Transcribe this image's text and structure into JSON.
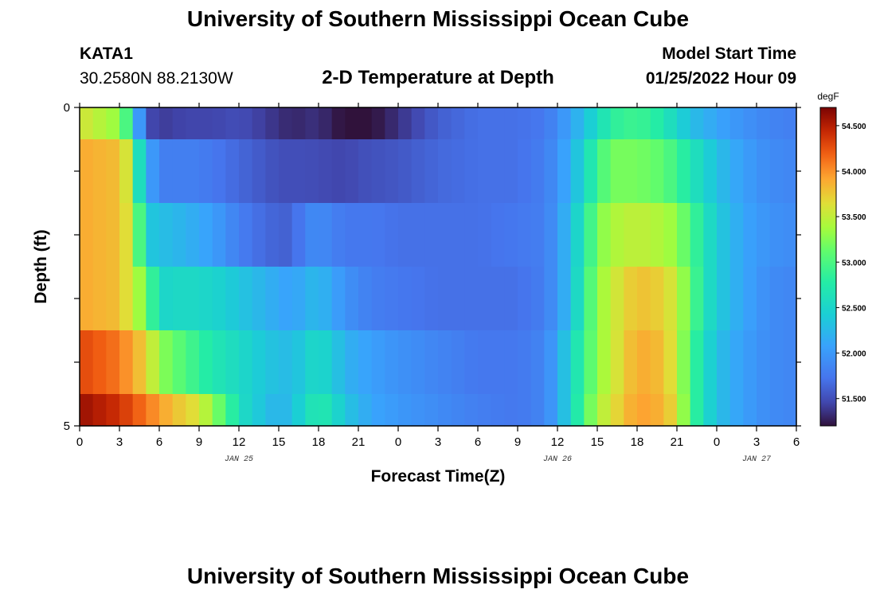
{
  "header": {
    "title": "University of Southern Mississippi Ocean Cube",
    "station_id": "KATA1",
    "coords": "30.2580N  88.2130W",
    "subtitle": "2-D Temperature at Depth",
    "model_label": "Model Start Time",
    "model_time": "01/25/2022 Hour 09"
  },
  "footer": {
    "title": "University of Southern Mississippi Ocean Cube"
  },
  "colors": {
    "colormap": "turbo",
    "axis": "#000000"
  },
  "chart_data": {
    "type": "heatmap",
    "title": "2-D Temperature at Depth",
    "xlabel": "Forecast Time(Z)",
    "ylabel": "Depth (ft)",
    "x_tick_labels": [
      "0",
      "3",
      "6",
      "9",
      "12",
      "15",
      "18",
      "21",
      "0",
      "3",
      "6",
      "9",
      "12",
      "15",
      "18",
      "21",
      "0",
      "3",
      "6"
    ],
    "date_labels": [
      {
        "text": "JAN 25",
        "at_tick": 4
      },
      {
        "text": "JAN 26",
        "at_tick": 12
      },
      {
        "text": "JAN 27",
        "at_tick": 17
      }
    ],
    "y_tick_labels": [
      "0",
      "5"
    ],
    "ylim": [
      0,
      5
    ],
    "x_hours_total": 54,
    "colorbar": {
      "unit": "degF",
      "range": [
        51.2,
        54.7
      ],
      "tick_labels": [
        "54.500",
        "54.000",
        "53.500",
        "53.000",
        "52.500",
        "52.000",
        "51.500"
      ],
      "tick_values": [
        54.5,
        54.0,
        53.5,
        53.0,
        52.5,
        52.0,
        51.5
      ]
    },
    "time_step_hours": 1,
    "depth_layers": [
      {
        "depth_range_ft": [
          0.0,
          0.5
        ],
        "keyframes": [
          [
            0,
            53.6
          ],
          [
            3,
            53.3
          ],
          [
            4,
            52.7
          ],
          [
            4.5,
            52.0
          ],
          [
            5,
            51.5
          ],
          [
            6,
            51.4
          ],
          [
            8,
            51.45
          ],
          [
            10,
            51.45
          ],
          [
            12,
            51.5
          ],
          [
            14,
            51.4
          ],
          [
            16,
            51.3
          ],
          [
            18,
            51.35
          ],
          [
            19,
            51.25
          ],
          [
            20,
            51.2
          ],
          [
            21,
            51.0
          ],
          [
            22,
            51.2
          ],
          [
            24,
            51.35
          ],
          [
            27,
            51.6
          ],
          [
            30,
            51.7
          ],
          [
            33,
            51.7
          ],
          [
            35,
            51.75
          ],
          [
            36,
            51.9
          ],
          [
            37,
            52.1
          ],
          [
            38,
            52.3
          ],
          [
            39,
            52.55
          ],
          [
            40,
            52.8
          ],
          [
            41,
            52.9
          ],
          [
            42,
            52.9
          ],
          [
            43,
            52.85
          ],
          [
            44,
            52.7
          ],
          [
            45,
            52.5
          ],
          [
            46,
            52.3
          ],
          [
            47,
            52.2
          ],
          [
            48,
            52.1
          ],
          [
            50,
            51.95
          ],
          [
            52,
            51.85
          ],
          [
            54,
            51.8
          ]
        ]
      },
      {
        "depth_range_ft": [
          0.5,
          1.5
        ],
        "keyframes": [
          [
            0,
            53.9
          ],
          [
            3,
            53.8
          ],
          [
            4,
            53.4
          ],
          [
            4.5,
            52.6
          ],
          [
            5,
            52.2
          ],
          [
            6,
            51.8
          ],
          [
            9,
            51.8
          ],
          [
            11,
            51.7
          ],
          [
            13,
            51.6
          ],
          [
            15,
            51.5
          ],
          [
            17,
            51.5
          ],
          [
            20,
            51.45
          ],
          [
            21,
            51.5
          ],
          [
            24,
            51.55
          ],
          [
            27,
            51.65
          ],
          [
            30,
            51.7
          ],
          [
            33,
            51.7
          ],
          [
            35,
            51.8
          ],
          [
            36,
            51.95
          ],
          [
            37,
            52.2
          ],
          [
            38,
            52.5
          ],
          [
            39,
            52.9
          ],
          [
            40,
            53.2
          ],
          [
            42,
            53.2
          ],
          [
            44,
            53.1
          ],
          [
            45,
            52.9
          ],
          [
            46,
            52.7
          ],
          [
            47,
            52.5
          ],
          [
            48,
            52.3
          ],
          [
            50,
            52.05
          ],
          [
            52,
            51.9
          ],
          [
            54,
            51.85
          ]
        ]
      },
      {
        "depth_range_ft": [
          1.5,
          2.5
        ],
        "keyframes": [
          [
            0,
            53.9
          ],
          [
            3,
            53.8
          ],
          [
            4,
            53.5
          ],
          [
            4.5,
            53.0
          ],
          [
            5,
            52.4
          ],
          [
            6,
            52.3
          ],
          [
            8,
            52.2
          ],
          [
            10,
            52.05
          ],
          [
            12,
            51.8
          ],
          [
            14,
            51.65
          ],
          [
            16,
            51.6
          ],
          [
            17,
            51.85
          ],
          [
            18,
            51.9
          ],
          [
            20,
            51.75
          ],
          [
            22,
            51.75
          ],
          [
            24,
            51.7
          ],
          [
            27,
            51.7
          ],
          [
            30,
            51.7
          ],
          [
            33,
            51.75
          ],
          [
            35,
            51.8
          ],
          [
            36,
            52.0
          ],
          [
            37,
            52.3
          ],
          [
            38,
            52.7
          ],
          [
            39,
            53.2
          ],
          [
            40,
            53.4
          ],
          [
            42,
            53.5
          ],
          [
            44,
            53.4
          ],
          [
            45,
            53.3
          ],
          [
            46,
            53.0
          ],
          [
            47,
            52.7
          ],
          [
            48,
            52.4
          ],
          [
            50,
            52.1
          ],
          [
            52,
            51.95
          ],
          [
            54,
            51.9
          ]
        ]
      },
      {
        "depth_range_ft": [
          2.5,
          3.5
        ],
        "keyframes": [
          [
            0,
            53.9
          ],
          [
            3,
            53.8
          ],
          [
            4,
            53.5
          ],
          [
            5,
            53.2
          ],
          [
            6,
            52.5
          ],
          [
            8,
            52.55
          ],
          [
            10,
            52.5
          ],
          [
            12,
            52.35
          ],
          [
            14,
            52.2
          ],
          [
            16,
            52.05
          ],
          [
            17,
            52.2
          ],
          [
            18,
            52.25
          ],
          [
            19,
            52.1
          ],
          [
            20,
            51.95
          ],
          [
            22,
            51.8
          ],
          [
            24,
            51.75
          ],
          [
            27,
            51.7
          ],
          [
            30,
            51.7
          ],
          [
            33,
            51.7
          ],
          [
            35,
            51.8
          ],
          [
            36,
            52.0
          ],
          [
            37,
            52.3
          ],
          [
            38,
            52.8
          ],
          [
            39,
            53.3
          ],
          [
            40,
            53.5
          ],
          [
            42,
            53.8
          ],
          [
            44,
            53.7
          ],
          [
            45,
            53.5
          ],
          [
            46,
            53.1
          ],
          [
            47,
            52.7
          ],
          [
            48,
            52.4
          ],
          [
            50,
            52.1
          ],
          [
            52,
            51.9
          ],
          [
            54,
            51.85
          ]
        ]
      },
      {
        "depth_range_ft": [
          3.5,
          4.5
        ],
        "keyframes": [
          [
            0,
            54.3
          ],
          [
            3,
            54.1
          ],
          [
            4,
            53.9
          ],
          [
            5,
            53.7
          ],
          [
            6,
            53.3
          ],
          [
            8,
            53.0
          ],
          [
            10,
            52.7
          ],
          [
            12,
            52.55
          ],
          [
            14,
            52.35
          ],
          [
            16,
            52.25
          ],
          [
            17,
            52.45
          ],
          [
            18,
            52.55
          ],
          [
            19,
            52.4
          ],
          [
            20,
            52.2
          ],
          [
            22,
            52.05
          ],
          [
            24,
            51.95
          ],
          [
            27,
            51.85
          ],
          [
            30,
            51.75
          ],
          [
            33,
            51.75
          ],
          [
            35,
            51.85
          ],
          [
            36,
            52.1
          ],
          [
            37,
            52.5
          ],
          [
            38,
            52.9
          ],
          [
            39,
            53.3
          ],
          [
            40,
            53.5
          ],
          [
            42,
            53.9
          ],
          [
            44,
            53.8
          ],
          [
            45,
            53.5
          ],
          [
            46,
            53.0
          ],
          [
            47,
            52.6
          ],
          [
            48,
            52.3
          ],
          [
            50,
            52.05
          ],
          [
            52,
            51.9
          ],
          [
            54,
            51.85
          ]
        ]
      },
      {
        "depth_range_ft": [
          4.5,
          5.0
        ],
        "keyframes": [
          [
            0,
            54.6
          ],
          [
            3,
            54.4
          ],
          [
            5,
            54.1
          ],
          [
            7,
            53.8
          ],
          [
            9,
            53.6
          ],
          [
            10,
            53.3
          ],
          [
            11,
            53.0
          ],
          [
            12,
            52.6
          ],
          [
            13,
            52.45
          ],
          [
            14,
            52.3
          ],
          [
            15,
            52.2
          ],
          [
            16,
            52.3
          ],
          [
            17,
            52.55
          ],
          [
            18,
            52.75
          ],
          [
            19,
            52.6
          ],
          [
            20,
            52.35
          ],
          [
            22,
            52.1
          ],
          [
            24,
            52.0
          ],
          [
            27,
            51.9
          ],
          [
            30,
            51.8
          ],
          [
            33,
            51.75
          ],
          [
            35,
            51.85
          ],
          [
            36,
            52.1
          ],
          [
            37,
            52.5
          ],
          [
            38,
            53.0
          ],
          [
            39,
            53.4
          ],
          [
            40,
            53.6
          ],
          [
            42,
            53.95
          ],
          [
            44,
            53.85
          ],
          [
            45,
            53.6
          ],
          [
            46,
            53.0
          ],
          [
            47,
            52.6
          ],
          [
            48,
            52.3
          ],
          [
            50,
            52.05
          ],
          [
            52,
            51.9
          ],
          [
            54,
            51.85
          ]
        ]
      }
    ]
  }
}
